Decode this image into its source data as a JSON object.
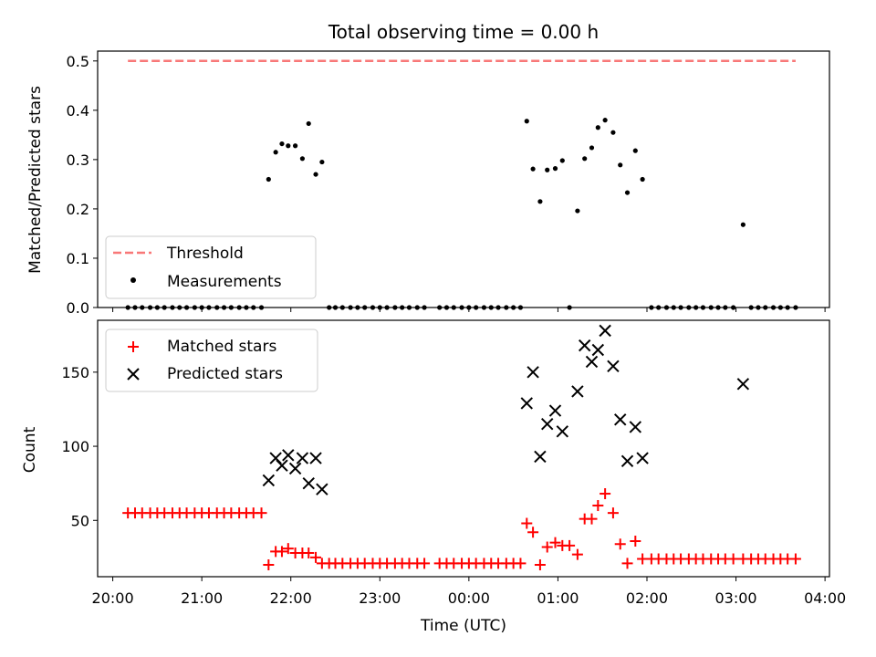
{
  "chart_data": [
    {
      "type": "scatter",
      "title": "Total observing time = 0.00 h",
      "xlabel": "",
      "ylabel": "Matched/Predicted stars",
      "ylim": [
        0,
        0.52
      ],
      "yticks": [
        "0.0",
        "0.1",
        "0.2",
        "0.3",
        "0.4",
        "0.5"
      ],
      "threshold": {
        "value": 0.5,
        "x_start": 20.17,
        "x_end": 27.67,
        "color": "#f87878",
        "style": "dashed"
      },
      "legend": {
        "position": "lower-left",
        "entries": [
          "Threshold",
          "Measurements"
        ]
      },
      "series": [
        {
          "name": "Measurements",
          "marker": "dot",
          "color": "#000000",
          "points": [
            [
              20.17,
              0
            ],
            [
              20.25,
              0
            ],
            [
              20.33,
              0
            ],
            [
              20.42,
              0
            ],
            [
              20.5,
              0
            ],
            [
              20.58,
              0
            ],
            [
              20.67,
              0
            ],
            [
              20.75,
              0
            ],
            [
              20.83,
              0
            ],
            [
              20.92,
              0
            ],
            [
              21.0,
              0
            ],
            [
              21.08,
              0
            ],
            [
              21.17,
              0
            ],
            [
              21.25,
              0
            ],
            [
              21.33,
              0
            ],
            [
              21.42,
              0
            ],
            [
              21.5,
              0
            ],
            [
              21.58,
              0
            ],
            [
              21.67,
              0
            ],
            [
              21.75,
              0.26
            ],
            [
              21.83,
              0.315
            ],
            [
              21.9,
              0.332
            ],
            [
              21.97,
              0.328
            ],
            [
              22.05,
              0.328
            ],
            [
              22.13,
              0.302
            ],
            [
              22.2,
              0.373
            ],
            [
              22.28,
              0.27
            ],
            [
              22.35,
              0.295
            ],
            [
              22.43,
              0
            ],
            [
              22.5,
              0
            ],
            [
              22.58,
              0
            ],
            [
              22.67,
              0
            ],
            [
              22.75,
              0
            ],
            [
              22.83,
              0
            ],
            [
              22.92,
              0
            ],
            [
              23.0,
              0
            ],
            [
              23.08,
              0
            ],
            [
              23.17,
              0
            ],
            [
              23.25,
              0
            ],
            [
              23.33,
              0
            ],
            [
              23.42,
              0
            ],
            [
              23.5,
              0
            ],
            [
              23.67,
              0
            ],
            [
              23.75,
              0
            ],
            [
              23.83,
              0
            ],
            [
              23.92,
              0
            ],
            [
              24.0,
              0
            ],
            [
              24.08,
              0
            ],
            [
              24.17,
              0
            ],
            [
              24.25,
              0
            ],
            [
              24.33,
              0
            ],
            [
              24.42,
              0
            ],
            [
              24.5,
              0
            ],
            [
              24.58,
              0
            ],
            [
              24.65,
              0.378
            ],
            [
              24.72,
              0.281
            ],
            [
              24.8,
              0.215
            ],
            [
              24.88,
              0.279
            ],
            [
              24.97,
              0.282
            ],
            [
              25.05,
              0.298
            ],
            [
              25.13,
              0
            ],
            [
              25.22,
              0.196
            ],
            [
              25.3,
              0.302
            ],
            [
              25.38,
              0.324
            ],
            [
              25.45,
              0.365
            ],
            [
              25.53,
              0.38
            ],
            [
              25.62,
              0.355
            ],
            [
              25.7,
              0.289
            ],
            [
              25.78,
              0.233
            ],
            [
              25.87,
              0.318
            ],
            [
              25.95,
              0.26
            ],
            [
              26.05,
              0
            ],
            [
              26.13,
              0
            ],
            [
              26.22,
              0
            ],
            [
              26.3,
              0
            ],
            [
              26.38,
              0
            ],
            [
              26.47,
              0
            ],
            [
              26.55,
              0
            ],
            [
              26.63,
              0
            ],
            [
              26.72,
              0
            ],
            [
              26.8,
              0
            ],
            [
              26.88,
              0
            ],
            [
              26.97,
              0
            ],
            [
              27.08,
              0.168
            ],
            [
              27.17,
              0
            ],
            [
              27.25,
              0
            ],
            [
              27.33,
              0
            ],
            [
              27.42,
              0
            ],
            [
              27.5,
              0
            ],
            [
              27.58,
              0
            ],
            [
              27.67,
              0
            ]
          ]
        }
      ]
    },
    {
      "type": "scatter",
      "title": "",
      "xlabel": "Time (UTC)",
      "ylabel": "Count",
      "ylim": [
        12,
        185
      ],
      "xlim": [
        19.83,
        28.05
      ],
      "yticks": [
        "50",
        "100",
        "150"
      ],
      "xticks": [
        "20:00",
        "21:00",
        "22:00",
        "23:00",
        "00:00",
        "01:00",
        "02:00",
        "03:00",
        "04:00"
      ],
      "legend": {
        "position": "upper-left",
        "entries": [
          "Matched stars",
          "Predicted stars"
        ]
      },
      "series": [
        {
          "name": "Matched stars",
          "marker": "plus",
          "color": "#ff0000",
          "points": [
            [
              20.17,
              55
            ],
            [
              20.25,
              55
            ],
            [
              20.33,
              55
            ],
            [
              20.42,
              55
            ],
            [
              20.5,
              55
            ],
            [
              20.58,
              55
            ],
            [
              20.67,
              55
            ],
            [
              20.75,
              55
            ],
            [
              20.83,
              55
            ],
            [
              20.92,
              55
            ],
            [
              21.0,
              55
            ],
            [
              21.08,
              55
            ],
            [
              21.17,
              55
            ],
            [
              21.25,
              55
            ],
            [
              21.33,
              55
            ],
            [
              21.42,
              55
            ],
            [
              21.5,
              55
            ],
            [
              21.58,
              55
            ],
            [
              21.67,
              55
            ],
            [
              21.75,
              20
            ],
            [
              21.83,
              29
            ],
            [
              21.9,
              29
            ],
            [
              21.97,
              31
            ],
            [
              22.05,
              28
            ],
            [
              22.13,
              28
            ],
            [
              22.2,
              28
            ],
            [
              22.28,
              25
            ],
            [
              22.35,
              21
            ],
            [
              22.43,
              21
            ],
            [
              22.5,
              21
            ],
            [
              22.58,
              21
            ],
            [
              22.67,
              21
            ],
            [
              22.75,
              21
            ],
            [
              22.83,
              21
            ],
            [
              22.92,
              21
            ],
            [
              23.0,
              21
            ],
            [
              23.08,
              21
            ],
            [
              23.17,
              21
            ],
            [
              23.25,
              21
            ],
            [
              23.33,
              21
            ],
            [
              23.42,
              21
            ],
            [
              23.5,
              21
            ],
            [
              23.67,
              21
            ],
            [
              23.75,
              21
            ],
            [
              23.83,
              21
            ],
            [
              23.92,
              21
            ],
            [
              24.0,
              21
            ],
            [
              24.08,
              21
            ],
            [
              24.17,
              21
            ],
            [
              24.25,
              21
            ],
            [
              24.33,
              21
            ],
            [
              24.42,
              21
            ],
            [
              24.5,
              21
            ],
            [
              24.58,
              21
            ],
            [
              24.65,
              48
            ],
            [
              24.72,
              42
            ],
            [
              24.8,
              20
            ],
            [
              24.88,
              32
            ],
            [
              24.97,
              35
            ],
            [
              25.05,
              33
            ],
            [
              25.13,
              33
            ],
            [
              25.22,
              27
            ],
            [
              25.3,
              51
            ],
            [
              25.38,
              51
            ],
            [
              25.45,
              60
            ],
            [
              25.53,
              68
            ],
            [
              25.62,
              55
            ],
            [
              25.7,
              34
            ],
            [
              25.78,
              21
            ],
            [
              25.87,
              36
            ],
            [
              25.95,
              24
            ],
            [
              26.05,
              24
            ],
            [
              26.13,
              24
            ],
            [
              26.22,
              24
            ],
            [
              26.3,
              24
            ],
            [
              26.38,
              24
            ],
            [
              26.47,
              24
            ],
            [
              26.55,
              24
            ],
            [
              26.63,
              24
            ],
            [
              26.72,
              24
            ],
            [
              26.8,
              24
            ],
            [
              26.88,
              24
            ],
            [
              26.97,
              24
            ],
            [
              27.08,
              24
            ],
            [
              27.17,
              24
            ],
            [
              27.25,
              24
            ],
            [
              27.33,
              24
            ],
            [
              27.42,
              24
            ],
            [
              27.5,
              24
            ],
            [
              27.58,
              24
            ],
            [
              27.67,
              24
            ]
          ]
        },
        {
          "name": "Predicted stars",
          "marker": "x",
          "color": "#000000",
          "points": [
            [
              21.75,
              77
            ],
            [
              21.83,
              92
            ],
            [
              21.9,
              87
            ],
            [
              21.97,
              94
            ],
            [
              22.05,
              85
            ],
            [
              22.13,
              92
            ],
            [
              22.2,
              75
            ],
            [
              22.28,
              92
            ],
            [
              22.35,
              71
            ],
            [
              24.65,
              129
            ],
            [
              24.72,
              150
            ],
            [
              24.8,
              93
            ],
            [
              24.88,
              115
            ],
            [
              24.97,
              124
            ],
            [
              25.05,
              110
            ],
            [
              25.22,
              137
            ],
            [
              25.3,
              168
            ],
            [
              25.38,
              157
            ],
            [
              25.45,
              165
            ],
            [
              25.53,
              178
            ],
            [
              25.62,
              154
            ],
            [
              25.7,
              118
            ],
            [
              25.78,
              90
            ],
            [
              25.87,
              113
            ],
            [
              25.95,
              92
            ],
            [
              27.08,
              142
            ]
          ]
        }
      ]
    }
  ]
}
